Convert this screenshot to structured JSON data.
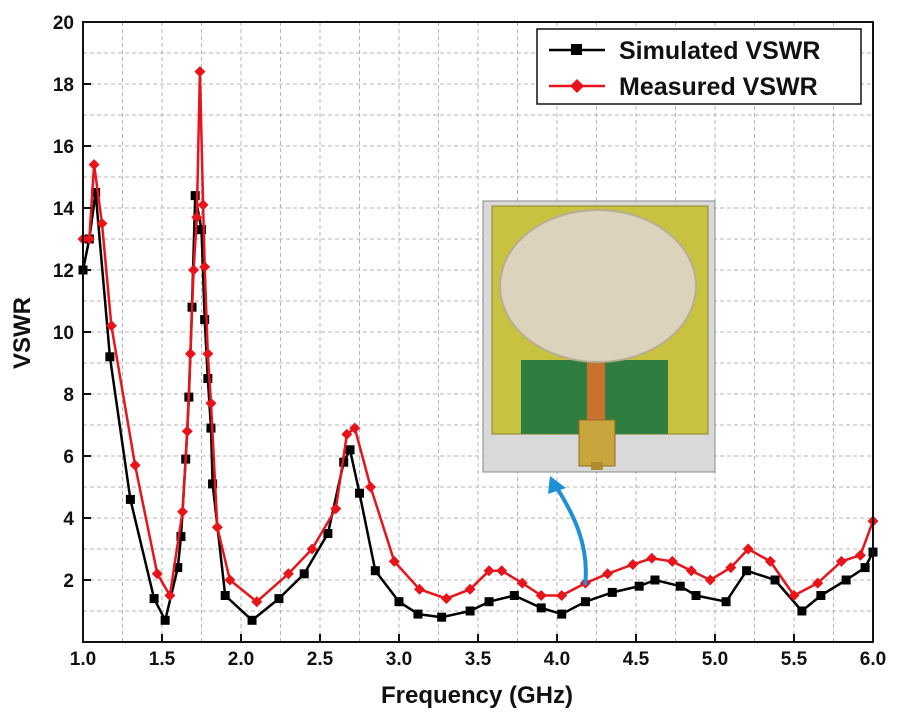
{
  "chart_data": {
    "type": "line",
    "xlabel": "Frequency (GHz)",
    "ylabel": "VSWR",
    "xlim": [
      1.0,
      6.0
    ],
    "ylim": [
      0,
      20
    ],
    "xticks": [
      "1.0",
      "1.5",
      "2.0",
      "2.5",
      "3.0",
      "3.5",
      "4.0",
      "4.5",
      "5.0",
      "5.5",
      "6.0"
    ],
    "yticks": [
      "2",
      "4",
      "6",
      "8",
      "10",
      "12",
      "14",
      "16",
      "18",
      "20"
    ],
    "grid": true,
    "legend_position": "top-right",
    "series": [
      {
        "name": "Simulated VSWR",
        "color": "#000000",
        "marker": "square",
        "x": [
          1.0,
          1.04,
          1.08,
          1.17,
          1.3,
          1.45,
          1.52,
          1.6,
          1.62,
          1.65,
          1.67,
          1.69,
          1.71,
          1.75,
          1.77,
          1.79,
          1.81,
          1.82,
          1.9,
          2.07,
          2.24,
          2.4,
          2.55,
          2.65,
          2.69,
          2.75,
          2.85,
          3.0,
          3.12,
          3.27,
          3.45,
          3.57,
          3.73,
          3.9,
          4.03,
          4.18,
          4.35,
          4.52,
          4.62,
          4.78,
          4.88,
          5.07,
          5.2,
          5.38,
          5.55,
          5.67,
          5.83,
          5.95,
          6.0
        ],
        "y": [
          12,
          13,
          14.5,
          9.2,
          4.6,
          1.4,
          0.7,
          2.4,
          3.4,
          5.9,
          7.9,
          10.8,
          14.4,
          13.3,
          10.4,
          8.5,
          6.9,
          5.1,
          1.5,
          0.7,
          1.4,
          2.2,
          3.5,
          5.8,
          6.2,
          4.8,
          2.3,
          1.3,
          0.9,
          0.8,
          1.0,
          1.3,
          1.5,
          1.1,
          0.9,
          1.3,
          1.6,
          1.8,
          2.0,
          1.8,
          1.5,
          1.3,
          2.3,
          2.0,
          1.0,
          1.5,
          2.0,
          2.4,
          2.9
        ]
      },
      {
        "name": "Measured VSWR",
        "color": "#e8141c",
        "marker": "diamond",
        "x": [
          1.0,
          1.04,
          1.07,
          1.12,
          1.18,
          1.33,
          1.47,
          1.55,
          1.63,
          1.66,
          1.68,
          1.7,
          1.72,
          1.74,
          1.76,
          1.77,
          1.79,
          1.81,
          1.85,
          1.93,
          2.1,
          2.3,
          2.45,
          2.6,
          2.67,
          2.72,
          2.82,
          2.97,
          3.13,
          3.3,
          3.45,
          3.57,
          3.65,
          3.78,
          3.9,
          4.03,
          4.18,
          4.32,
          4.48,
          4.6,
          4.73,
          4.85,
          4.97,
          5.1,
          5.21,
          5.35,
          5.5,
          5.65,
          5.8,
          5.92,
          6.0
        ],
        "y": [
          13,
          13,
          15.4,
          13.5,
          10.2,
          5.7,
          2.2,
          1.5,
          4.2,
          6.8,
          9.3,
          12,
          13.7,
          18.4,
          14.1,
          12.1,
          9.3,
          7.7,
          3.7,
          2.0,
          1.3,
          2.2,
          3.0,
          4.3,
          6.7,
          6.9,
          5.0,
          2.6,
          1.7,
          1.4,
          1.7,
          2.3,
          2.3,
          1.9,
          1.5,
          1.5,
          1.9,
          2.2,
          2.5,
          2.7,
          2.6,
          2.3,
          2.0,
          2.4,
          3.0,
          2.6,
          1.5,
          1.9,
          2.6,
          2.8,
          3.9
        ]
      }
    ]
  },
  "inset": {
    "image_name": "fabricated antenna photo"
  }
}
